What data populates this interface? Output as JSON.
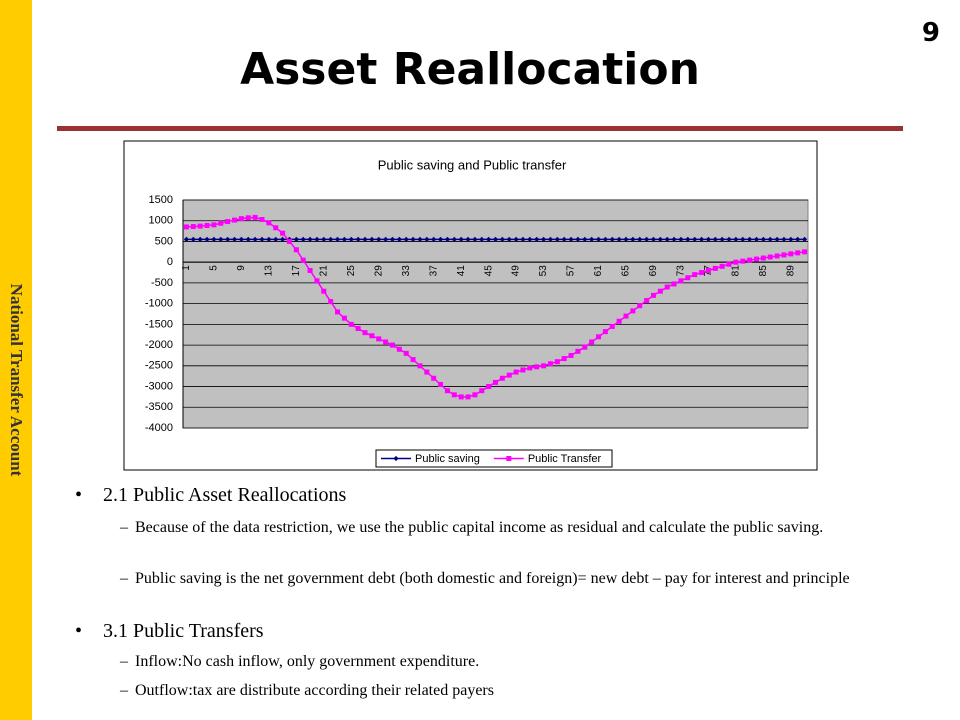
{
  "sidebar": "National Transfer Account",
  "page_number": "9",
  "title": "Asset Reallocation",
  "bullets": [
    {
      "text": "2.1 Public Asset Reallocations",
      "items": [
        "Because of the data restriction, we use the public capital income as residual and calculate the public saving.",
        "Public saving is the net government debt (both domestic and foreign)= new debt – pay for interest and principle"
      ]
    },
    {
      "text": "3.1 Public Transfers",
      "items": [
        "Inflow:No cash inflow, only government expenditure.",
        "Outflow:tax are distribute according their related payers"
      ]
    }
  ],
  "chart_data": {
    "type": "line",
    "title": "Public saving and Public transfer",
    "categories": [
      "1",
      null,
      null,
      null,
      "5",
      null,
      null,
      null,
      "9",
      null,
      null,
      null,
      "13",
      null,
      null,
      null,
      "17",
      null,
      null,
      null,
      "21",
      null,
      null,
      null,
      "25",
      null,
      null,
      null,
      "29",
      null,
      null,
      null,
      "33",
      null,
      null,
      null,
      "37",
      null,
      null,
      null,
      "41",
      null,
      null,
      null,
      "45",
      null,
      null,
      null,
      "49",
      null,
      null,
      null,
      "53",
      null,
      null,
      null,
      "57",
      null,
      null,
      null,
      "61",
      null,
      null,
      null,
      "65",
      null,
      null,
      null,
      "69",
      null,
      null,
      null,
      "73",
      null,
      null,
      null,
      "77",
      null,
      null,
      null,
      "81",
      null,
      null,
      null,
      "85",
      null,
      null,
      null,
      "89",
      null,
      null
    ],
    "series": [
      {
        "name": "Public saving",
        "color": "#000080",
        "marker": "diamond",
        "values": [
          550,
          550,
          550,
          550,
          550,
          550,
          550,
          550,
          550,
          550,
          550,
          550,
          550,
          550,
          550,
          550,
          550,
          550,
          550,
          550,
          550,
          550,
          550,
          550,
          550,
          550,
          550,
          550,
          550,
          550,
          550,
          550,
          550,
          550,
          550,
          550,
          550,
          550,
          550,
          550,
          550,
          550,
          550,
          550,
          550,
          550,
          550,
          550,
          550,
          550,
          550,
          550,
          550,
          550,
          550,
          550,
          550,
          550,
          550,
          550,
          550,
          550,
          550,
          550,
          550,
          550,
          550,
          550,
          550,
          550,
          550,
          550,
          550,
          550,
          550,
          550,
          550,
          550,
          550,
          550,
          550,
          550,
          550,
          550,
          550,
          550,
          550,
          550,
          550,
          550,
          550
        ]
      },
      {
        "name": "Public Transfer",
        "color": "#ff00ff",
        "marker": "square",
        "values": [
          850,
          860,
          870,
          885,
          900,
          940,
          980,
          1015,
          1050,
          1070,
          1080,
          1030,
          950,
          830,
          700,
          500,
          300,
          50,
          -200,
          -450,
          -700,
          -950,
          -1200,
          -1350,
          -1500,
          -1600,
          -1700,
          -1775,
          -1850,
          -1925,
          -2000,
          -2100,
          -2200,
          -2350,
          -2500,
          -2650,
          -2800,
          -2950,
          -3100,
          -3200,
          -3250,
          -3250,
          -3200,
          -3100,
          -3000,
          -2900,
          -2800,
          -2725,
          -2650,
          -2600,
          -2550,
          -2525,
          -2500,
          -2450,
          -2400,
          -2325,
          -2250,
          -2150,
          -2050,
          -1925,
          -1800,
          -1675,
          -1550,
          -1425,
          -1300,
          -1175,
          -1050,
          -925,
          -800,
          -700,
          -600,
          -525,
          -450,
          -375,
          -300,
          -250,
          -200,
          -150,
          -100,
          -50,
          0,
          25,
          50,
          75,
          100,
          125,
          150,
          175,
          200,
          225,
          250
        ]
      }
    ],
    "ylim": [
      -4000,
      1500
    ],
    "yticks": [
      1500,
      1000,
      500,
      0,
      -500,
      -1000,
      -1500,
      -2000,
      -2500,
      -3000,
      -3500,
      -4000
    ],
    "grid": true,
    "plot_background": "#c0c0c0",
    "legend": "bottom"
  }
}
